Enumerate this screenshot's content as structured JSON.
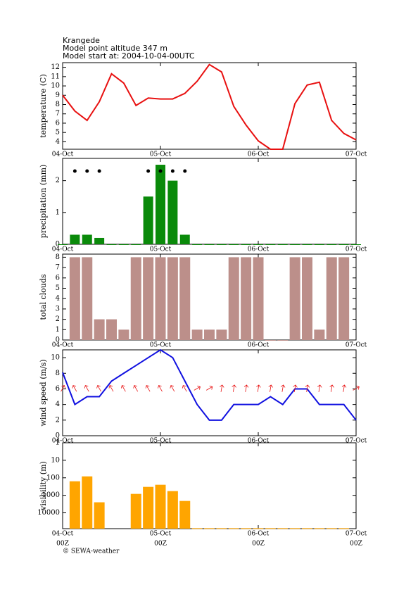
{
  "header": {
    "lines": [
      "Krangede",
      "Model point altitude  347 m",
      "Model start at: 2004-10-04-00UTC"
    ]
  },
  "footer": "© SEWA-weather",
  "chart_data": [
    {
      "type": "line",
      "ylabel": "temperature (C)",
      "x": [
        0,
        3,
        6,
        9,
        12,
        15,
        18,
        21,
        24,
        27,
        30,
        33,
        36,
        39,
        42,
        45,
        48,
        51,
        54,
        57,
        60,
        63,
        66,
        69,
        72
      ],
      "xlim": [
        0,
        72
      ],
      "xticks": [
        {
          "value": 0,
          "label": "04-Oct"
        },
        {
          "value": 24,
          "label": "05-Oct"
        },
        {
          "value": 48,
          "label": "06-Oct"
        },
        {
          "value": 72,
          "label": "07-Oct"
        }
      ],
      "ylim": [
        3.2,
        12.5
      ],
      "yticks": [
        4,
        5,
        6,
        7,
        8,
        9,
        10,
        11,
        12
      ],
      "color": "#e81010",
      "values": [
        9.0,
        7.3,
        6.3,
        8.3,
        11.3,
        10.3,
        7.9,
        8.7,
        8.6,
        8.6,
        9.2,
        10.5,
        12.3,
        11.5,
        7.8,
        5.8,
        4.1,
        3.2,
        3.2,
        8.1,
        10.1,
        10.4,
        6.3,
        4.9,
        4.2
      ]
    },
    {
      "type": "bar",
      "ylabel": "precipitation (mm)",
      "x": [
        0,
        3,
        6,
        9,
        12,
        15,
        18,
        21,
        24,
        27,
        30,
        33,
        36,
        39,
        42,
        45,
        48,
        51,
        54,
        57,
        60,
        63,
        66,
        69,
        72
      ],
      "xlim": [
        0,
        72
      ],
      "xticks": [
        {
          "value": 0,
          "label": "04-Oct"
        },
        {
          "value": 24,
          "label": "05-Oct"
        },
        {
          "value": 48,
          "label": "06-Oct"
        },
        {
          "value": 72,
          "label": "07-Oct"
        }
      ],
      "ylim": [
        0,
        2.7
      ],
      "yticks": [
        0,
        1,
        2
      ],
      "color": "#0a8a0a",
      "rain_markers": true,
      "values": [
        0,
        0.3,
        0.3,
        0.2,
        0,
        0,
        0,
        1.5,
        2.5,
        2.0,
        0.3,
        0,
        0,
        0,
        0,
        0,
        0,
        0,
        0,
        0,
        0,
        0,
        0,
        0,
        0
      ]
    },
    {
      "type": "bar",
      "ylabel": "total clouds",
      "x": [
        3,
        6,
        9,
        12,
        15,
        18,
        21,
        24,
        27,
        30,
        33,
        36,
        39,
        42,
        45,
        48,
        51,
        54,
        57,
        60,
        63,
        66,
        69
      ],
      "xlim": [
        0,
        72
      ],
      "xticks": [
        {
          "value": 0,
          "label": "04-Oct"
        },
        {
          "value": 24,
          "label": "05-Oct"
        },
        {
          "value": 48,
          "label": "06-Oct"
        },
        {
          "value": 72,
          "label": "07-Oct"
        }
      ],
      "ylim": [
        0,
        8.3
      ],
      "yticks": [
        0,
        1,
        2,
        3,
        4,
        5,
        6,
        7,
        8
      ],
      "color": "#bc8f8a",
      "values": [
        8,
        8,
        2,
        2,
        1,
        8,
        8,
        8,
        8,
        8,
        1,
        1,
        1,
        8,
        8,
        8,
        0,
        0,
        8,
        8,
        1,
        8,
        8
      ]
    },
    {
      "type": "line",
      "ylabel": "wind speed (m/s)",
      "x": [
        0,
        3,
        6,
        9,
        12,
        15,
        18,
        21,
        24,
        27,
        30,
        33,
        36,
        39,
        42,
        45,
        48,
        51,
        54,
        57,
        60,
        63,
        66,
        69,
        72
      ],
      "xlim": [
        0,
        72
      ],
      "xticks": [
        {
          "value": 0,
          "label": "04-Oct"
        },
        {
          "value": 24,
          "label": "05-Oct"
        },
        {
          "value": 48,
          "label": "06-Oct"
        },
        {
          "value": 72,
          "label": "07-Oct"
        }
      ],
      "ylim": [
        0,
        11
      ],
      "yticks": [
        0,
        2,
        4,
        6,
        8,
        10
      ],
      "color": "#1010e0",
      "values": [
        8.1,
        4.0,
        5.0,
        5.0,
        7.0,
        8.0,
        9.0,
        10.0,
        11.0,
        10.0,
        7.0,
        4.0,
        2.0,
        2.0,
        4.0,
        4.0,
        4.0,
        5.0,
        4.0,
        6.0,
        6.0,
        4.0,
        4.0,
        4.0,
        2.0
      ],
      "direction_color": "#e81010",
      "directions": [
        30,
        330,
        330,
        330,
        330,
        330,
        330,
        330,
        330,
        330,
        330,
        60,
        60,
        10,
        10,
        10,
        10,
        10,
        10,
        10,
        10,
        10,
        10,
        10,
        60
      ]
    },
    {
      "type": "bar",
      "ylabel": "visibility (m)",
      "log_scale": true,
      "y_inverted": true,
      "x": [
        3,
        6,
        9,
        12,
        15,
        18,
        21,
        24,
        27,
        30,
        33,
        36,
        39,
        42,
        45,
        48,
        51,
        54,
        57,
        60,
        63,
        66,
        69
      ],
      "xlim": [
        0,
        72
      ],
      "xticks": [
        {
          "value": 0,
          "label": "04-Oct",
          "sublabel": "00Z"
        },
        {
          "value": 24,
          "label": "05-Oct",
          "sublabel": "00Z"
        },
        {
          "value": 48,
          "label": "06-Oct",
          "sublabel": "00Z"
        },
        {
          "value": 72,
          "label": "07-Oct",
          "sublabel": "00Z"
        }
      ],
      "ylim": [
        1,
        80000
      ],
      "yticks": [
        1,
        10,
        100,
        1000,
        10000
      ],
      "color": "#ffa500",
      "values": [
        158,
        83,
        2500,
        null,
        null,
        830,
        330,
        250,
        575,
        2100,
        75000,
        75000,
        75000,
        75000,
        75000,
        75000,
        75000,
        75000,
        75000,
        75000,
        75000,
        75000,
        75000
      ]
    }
  ]
}
